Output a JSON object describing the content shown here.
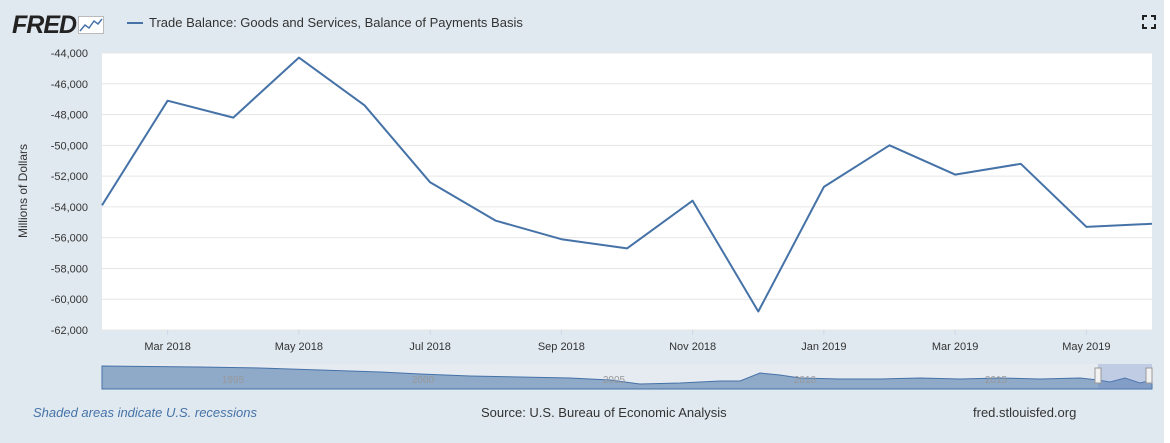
{
  "header": {
    "logo_text": "FRED",
    "legend_label": "Trade Balance: Goods and Services, Balance of Payments Basis",
    "series_color": "#4572a7"
  },
  "chart_data": {
    "type": "line",
    "x": [
      "2018-02",
      "2018-03",
      "2018-04",
      "2018-05",
      "2018-06",
      "2018-07",
      "2018-08",
      "2018-09",
      "2018-10",
      "2018-11",
      "2018-12",
      "2019-01",
      "2019-02",
      "2019-03",
      "2019-04",
      "2019-05",
      "2019-06"
    ],
    "series": [
      {
        "name": "Trade Balance: Goods and Services, Balance of Payments Basis",
        "values": [
          -53900,
          -47100,
          -48200,
          -44300,
          -47400,
          -52400,
          -54900,
          -56100,
          -56700,
          -53600,
          -60800,
          -52700,
          -50000,
          -51900,
          -51200,
          -55300,
          -55100
        ]
      }
    ],
    "ylabel": "Millions of Dollars",
    "ylim": [
      -62000,
      -44000
    ],
    "y_ticks": [
      "-44,000",
      "-46,000",
      "-48,000",
      "-50,000",
      "-52,000",
      "-54,000",
      "-56,000",
      "-58,000",
      "-60,000",
      "-62,000"
    ],
    "x_ticks": [
      "Mar 2018",
      "May 2018",
      "Jul 2018",
      "Sep 2018",
      "Nov 2018",
      "Jan 2019",
      "Mar 2019",
      "May 2019"
    ],
    "grid": true,
    "navigator_labels": [
      "1995",
      "2000",
      "2005",
      "2010",
      "2015"
    ]
  },
  "footer": {
    "recession_note": "Shaded areas indicate U.S. recessions",
    "source": "Source: U.S. Bureau of Economic Analysis",
    "site": "fred.stlouisfed.org"
  }
}
